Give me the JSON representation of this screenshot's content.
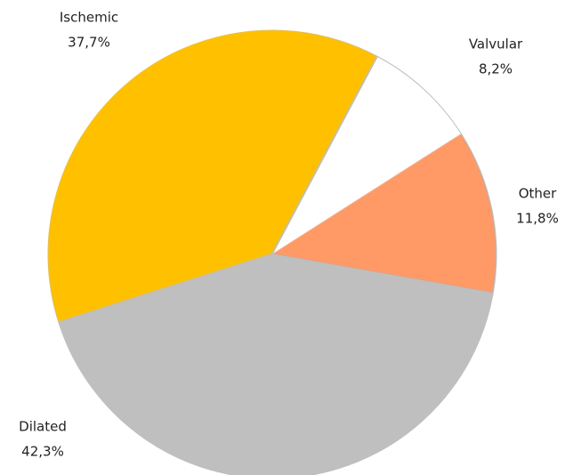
{
  "chart_data": {
    "type": "pie",
    "categories": [
      "Valvular",
      "Other",
      "Dilated",
      "Ischemic"
    ],
    "values": [
      8.2,
      11.8,
      42.3,
      37.7
    ],
    "value_labels": [
      "8,2%",
      "11,8%",
      "42,3%",
      "37,7%"
    ],
    "colors": [
      "#ffffff",
      "#ff9966",
      "#bfbfbf",
      "#ffc000"
    ]
  }
}
